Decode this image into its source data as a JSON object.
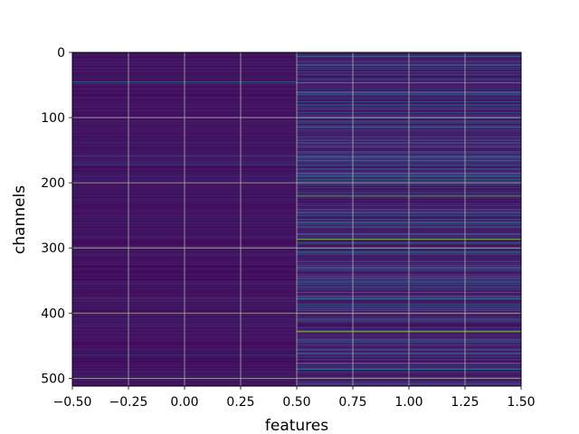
{
  "chart_data": {
    "type": "heatmap",
    "title": "",
    "xlabel": "features",
    "ylabel": "channels",
    "xlim": [
      -0.5,
      1.5
    ],
    "ylim": [
      512,
      0
    ],
    "y_inverted": true,
    "grid": true,
    "colormap": "viridis",
    "columns": [
      0,
      1
    ],
    "rows": 512,
    "x_ticks": [
      "−0.50",
      "−0.25",
      "0.00",
      "0.25",
      "0.50",
      "0.75",
      "1.00",
      "1.25",
      "1.50"
    ],
    "x_tick_values": [
      -0.5,
      -0.25,
      0.0,
      0.25,
      0.5,
      0.75,
      1.0,
      1.25,
      1.5
    ],
    "y_ticks": [
      "0",
      "100",
      "200",
      "300",
      "400",
      "500"
    ],
    "y_tick_values": [
      0,
      100,
      200,
      300,
      400,
      500
    ],
    "feature0_bright_rows": [
      {
        "row": 45,
        "value": 0.45
      },
      {
        "row": 158,
        "value": 0.22
      },
      {
        "row": 172,
        "value": 0.2
      },
      {
        "row": 376,
        "value": 0.18
      },
      {
        "row": 464,
        "value": 0.18
      }
    ],
    "feature1_bright_rows": [
      {
        "row": 6,
        "value": 0.35
      },
      {
        "row": 46,
        "value": 0.62
      },
      {
        "row": 60,
        "value": 0.38
      },
      {
        "row": 100,
        "value": 0.32
      },
      {
        "row": 185,
        "value": 0.35
      },
      {
        "row": 195,
        "value": 0.5
      },
      {
        "row": 220,
        "value": 0.7
      },
      {
        "row": 256,
        "value": 0.45
      },
      {
        "row": 286,
        "value": 0.85
      },
      {
        "row": 292,
        "value": 0.4
      },
      {
        "row": 330,
        "value": 0.3
      },
      {
        "row": 346,
        "value": 0.35
      },
      {
        "row": 428,
        "value": 0.9
      },
      {
        "row": 462,
        "value": 0.32
      },
      {
        "row": 476,
        "value": 0.5
      },
      {
        "row": 486,
        "value": 0.4
      }
    ]
  }
}
